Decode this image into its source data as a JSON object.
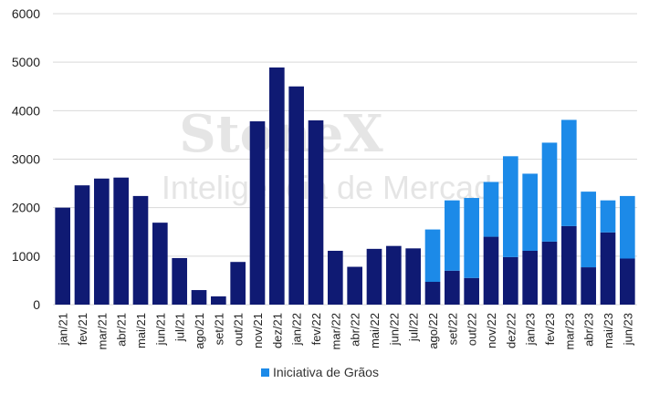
{
  "chart_data": {
    "type": "bar",
    "stacked": true,
    "title": "",
    "xlabel": "",
    "ylabel": "",
    "ylim": [
      0,
      6000
    ],
    "yticks": [
      0,
      1000,
      2000,
      3000,
      4000,
      5000,
      6000
    ],
    "grid": true,
    "legend_position": "bottom",
    "categories": [
      "jan/21",
      "fev/21",
      "mar/21",
      "abr/21",
      "mai/21",
      "jun/21",
      "jul/21",
      "ago/21",
      "set/21",
      "out/21",
      "nov/21",
      "dez/21",
      "jan/22",
      "fev/22",
      "mar/22",
      "abr/22",
      "mai/22",
      "jun/22",
      "jul/22",
      "ago/22",
      "set/22",
      "out/22",
      "nov/22",
      "dez/22",
      "jan/23",
      "fev/23",
      "mar/23",
      "abr/23",
      "mai/23",
      "jun/23"
    ],
    "series": [
      {
        "color": "#0f1a73",
        "values": [
          2000,
          2460,
          2600,
          2620,
          2240,
          1690,
          960,
          300,
          170,
          880,
          3780,
          4890,
          4500,
          3800,
          1110,
          780,
          1150,
          1210,
          1160,
          470,
          700,
          550,
          1400,
          980,
          1110,
          1300,
          1620,
          770,
          1490,
          950
        ]
      },
      {
        "name": "Iniciativa de Grãos",
        "color": "#1c8ae8",
        "values": [
          0,
          0,
          0,
          0,
          0,
          0,
          0,
          0,
          0,
          0,
          0,
          0,
          0,
          0,
          0,
          0,
          0,
          0,
          0,
          1080,
          1450,
          1650,
          1130,
          2080,
          1590,
          2040,
          2190,
          1560,
          660,
          1290
        ]
      }
    ]
  },
  "watermark": {
    "line1": "StoneX",
    "line2": "Inteligência de Mercado"
  }
}
